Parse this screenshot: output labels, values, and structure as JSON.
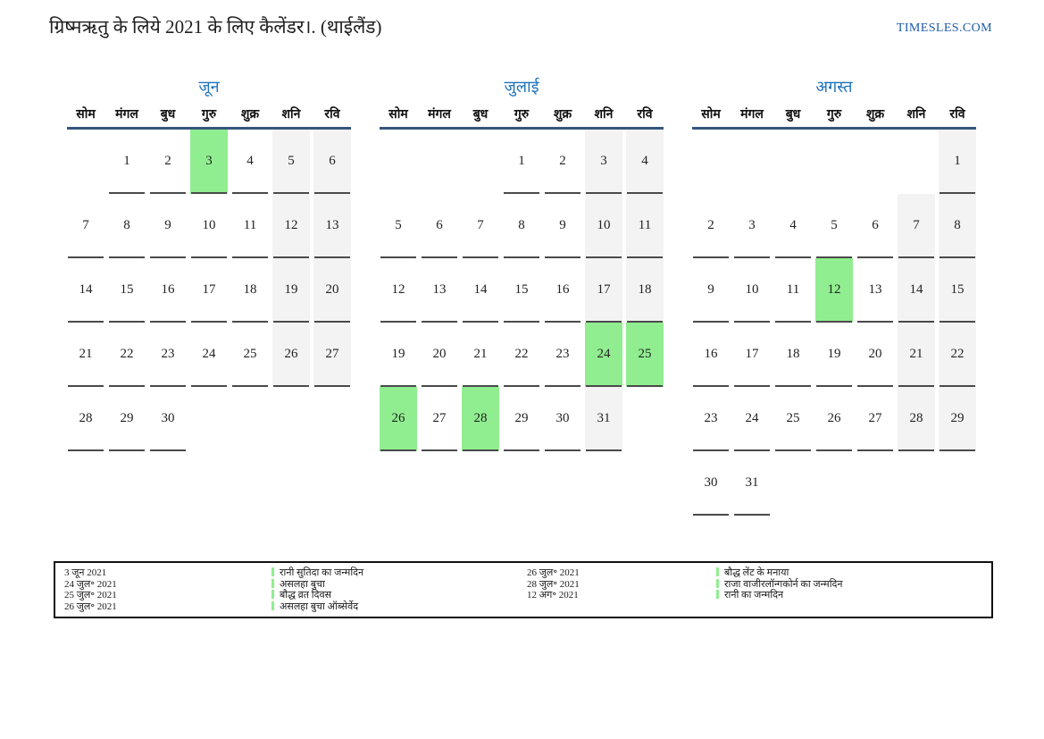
{
  "header": {
    "title": "ग्रिष्मऋतु के लिये 2021 के लिए कैलेंडर।. (थाईलैंड)",
    "site_link": "TIMESLES.COM"
  },
  "calendar": {
    "weekdays": [
      "सोम",
      "मंगल",
      "बुध",
      "गुरु",
      "शुक्र",
      "शनि",
      "रवि"
    ],
    "weekend_columns": [
      5,
      6
    ],
    "months": [
      {
        "name": "जून",
        "weeks": [
          [
            null,
            1,
            2,
            3,
            4,
            5,
            6
          ],
          [
            7,
            8,
            9,
            10,
            11,
            12,
            13
          ],
          [
            14,
            15,
            16,
            17,
            18,
            19,
            20
          ],
          [
            21,
            22,
            23,
            24,
            25,
            26,
            27
          ],
          [
            28,
            29,
            30,
            null,
            null,
            null,
            null
          ]
        ],
        "holiday_days": [
          3
        ]
      },
      {
        "name": "जुलाई",
        "weeks": [
          [
            null,
            null,
            null,
            1,
            2,
            3,
            4
          ],
          [
            5,
            6,
            7,
            8,
            9,
            10,
            11
          ],
          [
            12,
            13,
            14,
            15,
            16,
            17,
            18
          ],
          [
            19,
            20,
            21,
            22,
            23,
            24,
            25
          ],
          [
            26,
            27,
            28,
            29,
            30,
            31,
            null
          ]
        ],
        "holiday_days": [
          24,
          25,
          26,
          28
        ]
      },
      {
        "name": "अगस्त",
        "weeks": [
          [
            null,
            null,
            null,
            null,
            null,
            null,
            1
          ],
          [
            2,
            3,
            4,
            5,
            6,
            7,
            8
          ],
          [
            9,
            10,
            11,
            12,
            13,
            14,
            15
          ],
          [
            16,
            17,
            18,
            19,
            20,
            21,
            22
          ],
          [
            23,
            24,
            25,
            26,
            27,
            28,
            29
          ],
          [
            30,
            31,
            null,
            null,
            null,
            null,
            null
          ]
        ],
        "holiday_days": [
          12
        ]
      }
    ]
  },
  "legend": {
    "groups": [
      {
        "entries": [
          {
            "date": "3 जून 2021",
            "label": "रानी सुतिदा का जन्मदिन"
          },
          {
            "date": "24 जुल॰ 2021",
            "label": "असलहा बुचा"
          },
          {
            "date": "25 जुल॰ 2021",
            "label": "बौद्ध व्रत दिवस"
          },
          {
            "date": "26 जुल॰ 2021",
            "label": "असलहा बुचा ऑब्सेर्वेद"
          }
        ]
      },
      {
        "entries": [
          {
            "date": "26 जुल॰ 2021",
            "label": "बौद्ध लेंट के मनाया"
          },
          {
            "date": "28 जुल॰ 2021",
            "label": "राजा वाजीरलॉन्गकोर्न का जन्मदिन"
          },
          {
            "date": "12 अग॰ 2021",
            "label": "रानी का जन्मदिन"
          }
        ]
      }
    ]
  },
  "colors": {
    "holiday_green": "#90ee90",
    "weekend_gray": "#f3f3f3",
    "month_title_blue": "#1e73be",
    "header_line_blue": "#35567e",
    "link_blue": "#1d5ca8",
    "underline_gray": "#4a4a4a"
  }
}
